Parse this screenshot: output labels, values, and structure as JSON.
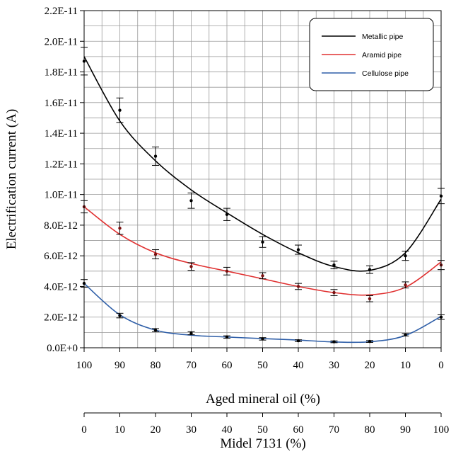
{
  "chart_data": {
    "type": "scatter",
    "title": "",
    "xlabel": "Aged mineral oil (%)",
    "xlabel2": "Midel 7131 (%)",
    "ylabel": "Electrification current (A)",
    "x_ticks": [
      "100",
      "90",
      "80",
      "70",
      "60",
      "50",
      "40",
      "30",
      "20",
      "10",
      "0"
    ],
    "x2_ticks": [
      "0",
      "10",
      "20",
      "30",
      "40",
      "50",
      "60",
      "70",
      "80",
      "90",
      "100"
    ],
    "y_ticks": [
      "0.0E+0",
      "2.0E-12",
      "4.0E-12",
      "6.0E-12",
      "8.0E-12",
      "1.0E-11",
      "1.2E-11",
      "1.4E-11",
      "1.6E-11",
      "1.8E-11",
      "2.0E-11",
      "2.2E-11"
    ],
    "ylim": [
      0,
      2.2e-11
    ],
    "xlim": [
      100,
      0
    ],
    "grid": true,
    "legend": "top-right",
    "x": [
      100,
      90,
      80,
      70,
      60,
      50,
      40,
      30,
      20,
      10,
      0
    ],
    "series": [
      {
        "name": "Metallic pipe",
        "color": "#000000",
        "values": [
          1.87e-11,
          1.55e-11,
          1.25e-11,
          9.6e-12,
          8.7e-12,
          6.9e-12,
          6.4e-12,
          5.4e-12,
          5.1e-12,
          6e-12,
          9.9e-12
        ],
        "err": [
          9e-13,
          8e-13,
          6e-13,
          5e-13,
          4e-13,
          3.5e-13,
          3e-13,
          2.5e-13,
          2.5e-13,
          3e-13,
          5e-13
        ],
        "fit": [
          1.9e-11,
          1.48e-11,
          1.22e-11,
          1.03e-11,
          8.8e-12,
          7.4e-12,
          6.2e-12,
          5.3e-12,
          5.05e-12,
          6.2e-12,
          9.7e-12
        ]
      },
      {
        "name": "Aramid pipe",
        "color": "#e03030",
        "values": [
          9.2e-12,
          7.8e-12,
          6.1e-12,
          5.3e-12,
          5e-12,
          4.7e-12,
          4e-12,
          3.6e-12,
          3.2e-12,
          4.1e-12,
          5.4e-12
        ],
        "err": [
          4e-13,
          4e-13,
          3e-13,
          2.5e-13,
          2.5e-13,
          2e-13,
          2e-13,
          2e-13,
          2e-13,
          2e-13,
          3e-13
        ],
        "fit": [
          9.2e-12,
          7.4e-12,
          6.2e-12,
          5.5e-12,
          5e-12,
          4.5e-12,
          4e-12,
          3.6e-12,
          3.45e-12,
          3.95e-12,
          5.6e-12
        ]
      },
      {
        "name": "Cellulose pipe",
        "color": "#2f5fa8",
        "values": [
          4.2e-12,
          2.1e-12,
          1.15e-12,
          9.5e-13,
          7e-13,
          5.8e-13,
          4.6e-13,
          3.9e-13,
          4.1e-13,
          8.5e-13,
          2e-12
        ],
        "err": [
          2.5e-13,
          1.5e-13,
          1e-13,
          1e-13,
          8e-14,
          8e-14,
          6e-14,
          6e-14,
          6e-14,
          8e-14,
          1.5e-13
        ],
        "fit": [
          4.2e-12,
          2.15e-12,
          1.15e-12,
          8.2e-13,
          7e-13,
          6e-13,
          5e-13,
          3.8e-13,
          3.9e-13,
          8e-13,
          2.05e-12
        ]
      }
    ]
  }
}
